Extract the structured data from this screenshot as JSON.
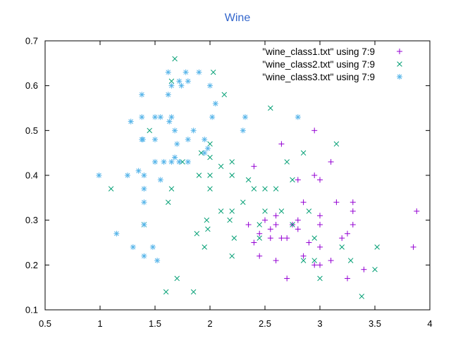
{
  "chart_data": {
    "type": "scatter",
    "title": "Wine",
    "title_color": "#3366cc",
    "xlim": [
      0.5,
      4
    ],
    "ylim": [
      0.1,
      0.7
    ],
    "xticks": [
      "0.5",
      "1",
      "1.5",
      "2",
      "2.5",
      "3",
      "3.5",
      "4"
    ],
    "yticks": [
      "0.1",
      "0.2",
      "0.3",
      "0.4",
      "0.5",
      "0.6",
      "0.7"
    ],
    "grid": false,
    "legend_position": "top-right",
    "series": [
      {
        "name": "\"wine_class1.txt\" using 7:9",
        "marker": "plus",
        "color": "#9400d3",
        "points": [
          [
            2.35,
            0.29
          ],
          [
            2.4,
            0.25
          ],
          [
            2.45,
            0.27
          ],
          [
            2.55,
            0.26
          ],
          [
            2.5,
            0.3
          ],
          [
            2.6,
            0.21
          ],
          [
            2.6,
            0.31
          ],
          [
            2.65,
            0.26
          ],
          [
            2.7,
            0.26
          ],
          [
            2.7,
            0.17
          ],
          [
            2.75,
            0.29
          ],
          [
            2.8,
            0.3
          ],
          [
            2.8,
            0.28
          ],
          [
            2.85,
            0.34
          ],
          [
            2.85,
            0.22
          ],
          [
            2.9,
            0.25
          ],
          [
            2.95,
            0.4
          ],
          [
            2.95,
            0.5
          ],
          [
            2.95,
            0.2
          ],
          [
            3.0,
            0.39
          ],
          [
            3.0,
            0.29
          ],
          [
            3.0,
            0.24
          ],
          [
            3.0,
            0.2
          ],
          [
            3.0,
            0.31
          ],
          [
            3.1,
            0.43
          ],
          [
            3.1,
            0.21
          ],
          [
            3.15,
            0.34
          ],
          [
            3.2,
            0.26
          ],
          [
            3.25,
            0.27
          ],
          [
            3.25,
            0.17
          ],
          [
            3.3,
            0.34
          ],
          [
            3.3,
            0.29
          ],
          [
            3.3,
            0.32
          ],
          [
            3.4,
            0.19
          ],
          [
            3.85,
            0.24
          ],
          [
            3.88,
            0.32
          ],
          [
            2.4,
            0.42
          ],
          [
            2.45,
            0.22
          ],
          [
            2.55,
            0.28
          ],
          [
            2.6,
            0.29
          ],
          [
            2.65,
            0.47
          ],
          [
            2.8,
            0.39
          ]
        ]
      },
      {
        "name": "\"wine_class2.txt\" using 7:9",
        "marker": "x",
        "color": "#009e73",
        "points": [
          [
            1.1,
            0.37
          ],
          [
            1.4,
            0.29
          ],
          [
            1.45,
            0.5
          ],
          [
            1.6,
            0.14
          ],
          [
            1.62,
            0.34
          ],
          [
            1.65,
            0.37
          ],
          [
            1.68,
            0.66
          ],
          [
            1.65,
            0.61
          ],
          [
            1.75,
            0.43
          ],
          [
            1.85,
            0.14
          ],
          [
            1.88,
            0.27
          ],
          [
            1.92,
            0.45
          ],
          [
            1.95,
            0.24
          ],
          [
            1.97,
            0.3
          ],
          [
            1.98,
            0.28
          ],
          [
            2.0,
            0.37
          ],
          [
            2.0,
            0.4
          ],
          [
            2.0,
            0.47
          ],
          [
            2.03,
            0.63
          ],
          [
            2.1,
            0.42
          ],
          [
            2.1,
            0.32
          ],
          [
            2.13,
            0.58
          ],
          [
            2.18,
            0.3
          ],
          [
            2.2,
            0.32
          ],
          [
            2.2,
            0.22
          ],
          [
            2.2,
            0.43
          ],
          [
            2.22,
            0.26
          ],
          [
            2.35,
            0.39
          ],
          [
            2.45,
            0.26
          ],
          [
            2.45,
            0.29
          ],
          [
            2.5,
            0.32
          ],
          [
            2.5,
            0.37
          ],
          [
            2.55,
            0.55
          ],
          [
            2.6,
            0.37
          ],
          [
            2.65,
            0.32
          ],
          [
            2.7,
            0.43
          ],
          [
            2.75,
            0.39
          ],
          [
            2.85,
            0.45
          ],
          [
            2.9,
            0.32
          ],
          [
            2.95,
            0.21
          ],
          [
            2.95,
            0.26
          ],
          [
            3.0,
            0.17
          ],
          [
            3.15,
            0.47
          ],
          [
            3.2,
            0.24
          ],
          [
            3.28,
            0.21
          ],
          [
            3.38,
            0.13
          ],
          [
            3.5,
            0.19
          ],
          [
            3.52,
            0.24
          ],
          [
            2.85,
            0.21
          ],
          [
            2.4,
            0.37
          ],
          [
            2.75,
            0.29
          ],
          [
            2.3,
            0.34
          ],
          [
            2.2,
            0.4
          ],
          [
            2.0,
            0.44
          ],
          [
            1.9,
            0.4
          ],
          [
            1.7,
            0.17
          ]
        ]
      },
      {
        "name": "\"wine_class3.txt\" using 7:9",
        "marker": "star",
        "color": "#56b4e9",
        "points": [
          [
            0.99,
            0.4
          ],
          [
            1.15,
            0.27
          ],
          [
            1.25,
            0.4
          ],
          [
            1.28,
            0.52
          ],
          [
            1.3,
            0.24
          ],
          [
            1.35,
            0.41
          ],
          [
            1.38,
            0.58
          ],
          [
            1.38,
            0.53
          ],
          [
            1.38,
            0.48
          ],
          [
            1.39,
            0.48
          ],
          [
            1.4,
            0.4
          ],
          [
            1.4,
            0.37
          ],
          [
            1.4,
            0.34
          ],
          [
            1.4,
            0.29
          ],
          [
            1.4,
            0.22
          ],
          [
            1.48,
            0.24
          ],
          [
            1.5,
            0.53
          ],
          [
            1.5,
            0.43
          ],
          [
            1.5,
            0.48
          ],
          [
            1.52,
            0.21
          ],
          [
            1.55,
            0.53
          ],
          [
            1.55,
            0.39
          ],
          [
            1.58,
            0.43
          ],
          [
            1.62,
            0.63
          ],
          [
            1.62,
            0.58
          ],
          [
            1.63,
            0.52
          ],
          [
            1.65,
            0.6
          ],
          [
            1.65,
            0.43
          ],
          [
            1.65,
            0.53
          ],
          [
            1.68,
            0.5
          ],
          [
            1.68,
            0.44
          ],
          [
            1.7,
            0.47
          ],
          [
            1.72,
            0.43
          ],
          [
            1.72,
            0.61
          ],
          [
            1.74,
            0.6
          ],
          [
            1.78,
            0.63
          ],
          [
            1.8,
            0.61
          ],
          [
            1.8,
            0.48
          ],
          [
            1.8,
            0.43
          ],
          [
            1.85,
            0.5
          ],
          [
            1.9,
            0.63
          ],
          [
            1.95,
            0.48
          ],
          [
            1.98,
            0.46
          ],
          [
            2.0,
            0.6
          ],
          [
            2.02,
            0.53
          ],
          [
            2.05,
            0.56
          ],
          [
            2.3,
            0.5
          ],
          [
            2.32,
            0.53
          ],
          [
            2.8,
            0.53
          ],
          [
            1.95,
            0.45
          ]
        ]
      }
    ]
  }
}
